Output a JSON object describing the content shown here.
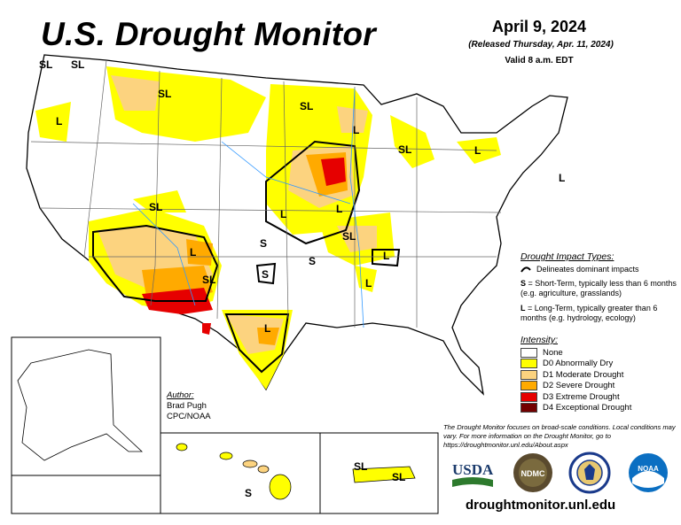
{
  "title": "U.S. Drought Monitor",
  "date": "April 9, 2024",
  "released": "(Released Thursday, Apr. 11, 2024)",
  "valid": "Valid 8 a.m. EDT",
  "impact_types": {
    "header": "Drought Impact Types:",
    "line_label": "Delineates dominant impacts",
    "s_key": "S",
    "s_desc": " = Short-Term, typically less than 6 months (e.g. agriculture, grasslands)",
    "l_key": "L",
    "l_desc": " = Long-Term, typically greater than 6 months (e.g. hydrology, ecology)"
  },
  "intensity": {
    "header": "Intensity:",
    "levels": [
      {
        "label": "None",
        "color": "#FFFFFF"
      },
      {
        "label": "D0 Abnormally Dry",
        "color": "#FFFF00"
      },
      {
        "label": "D1 Moderate Drought",
        "color": "#FCD37F"
      },
      {
        "label": "D2 Severe Drought",
        "color": "#FFAA00"
      },
      {
        "label": "D3 Extreme Drought",
        "color": "#E60000"
      },
      {
        "label": "D4 Exceptional Drought",
        "color": "#730000"
      }
    ]
  },
  "note": "The Drought Monitor focuses on broad-scale conditions. Local conditions may vary. For more information on the Drought Monitor, go to https://droughtmonitor.unl.edu/About.aspx",
  "author": {
    "header": "Author:",
    "name": "Brad Pugh",
    "org": "CPC/NOAA"
  },
  "url": "droughtmonitor.unl.edu",
  "logos": {
    "usda": "USDA",
    "ndmc": "NDMC",
    "noaa": "NOAA"
  },
  "map_labels": {
    "sl": "SL",
    "s": "S",
    "l": "L"
  }
}
